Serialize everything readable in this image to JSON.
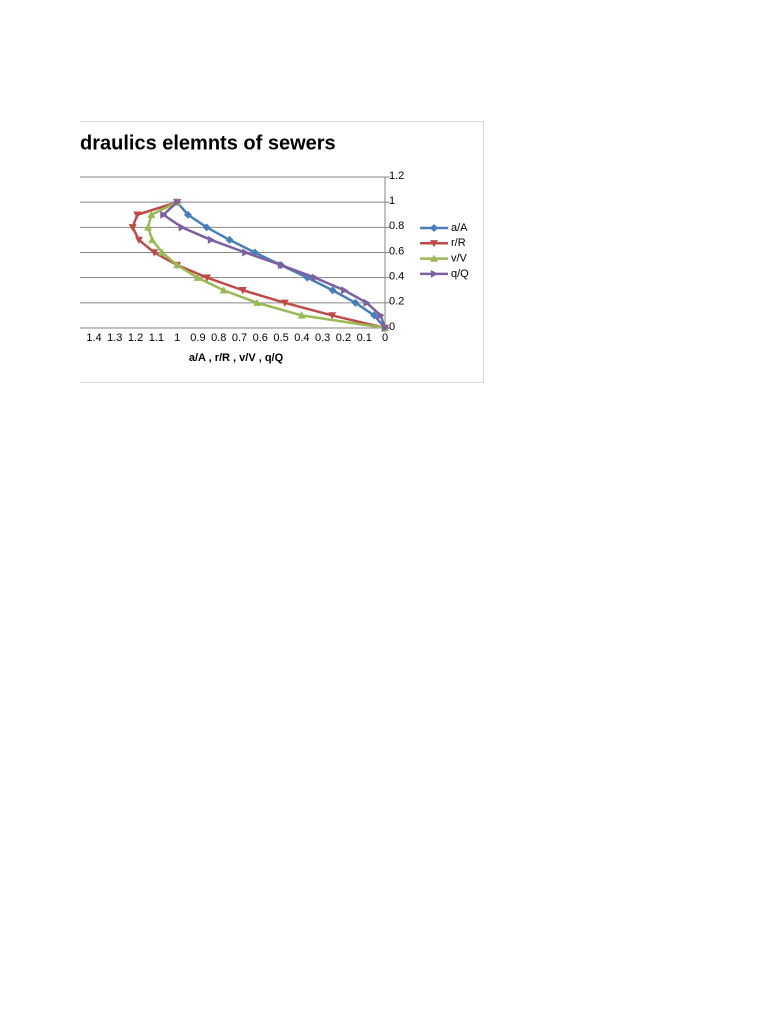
{
  "chart_data": {
    "type": "line",
    "title": "draulics elemnts of sewers",
    "x_label": "a/A , r/R , v/V , q/Q",
    "y": [
      0,
      0.1,
      0.2,
      0.3,
      0.4,
      0.5,
      0.6,
      0.7,
      0.8,
      0.9,
      1.0
    ],
    "series": [
      {
        "name": "a/A",
        "color": "#4a7ebb",
        "marker": "diamond",
        "x": [
          0,
          0.052,
          0.142,
          0.252,
          0.374,
          0.5,
          0.626,
          0.748,
          0.858,
          0.948,
          1.0
        ]
      },
      {
        "name": "r/R",
        "color": "#be4b48",
        "marker": "triangle-down",
        "x": [
          0,
          0.254,
          0.482,
          0.684,
          0.856,
          1.0,
          1.11,
          1.184,
          1.214,
          1.192,
          1.0
        ]
      },
      {
        "name": "v/V",
        "color": "#98b954",
        "marker": "triangle-up",
        "x": [
          0,
          0.401,
          0.615,
          0.776,
          0.902,
          1.0,
          1.072,
          1.12,
          1.14,
          1.124,
          1.0
        ]
      },
      {
        "name": "q/Q",
        "color": "#7d60a0",
        "marker": "triangle-right",
        "x": [
          0,
          0.021,
          0.088,
          0.196,
          0.337,
          0.5,
          0.672,
          0.837,
          0.977,
          1.066,
          1.0
        ]
      }
    ],
    "xlim": [
      0,
      1.4
    ],
    "x_reversed": true,
    "xticks": [
      0,
      0.1,
      0.2,
      0.3,
      0.4,
      0.5,
      0.6,
      0.7,
      0.8,
      0.9,
      1,
      1.1,
      1.2,
      1.3,
      1.4
    ],
    "ylim": [
      0,
      1.2
    ],
    "yticks": [
      0,
      0.2,
      0.4,
      0.6,
      0.8,
      1,
      1.2
    ],
    "y_axis_side": "right",
    "grid": true,
    "legend": "right"
  }
}
